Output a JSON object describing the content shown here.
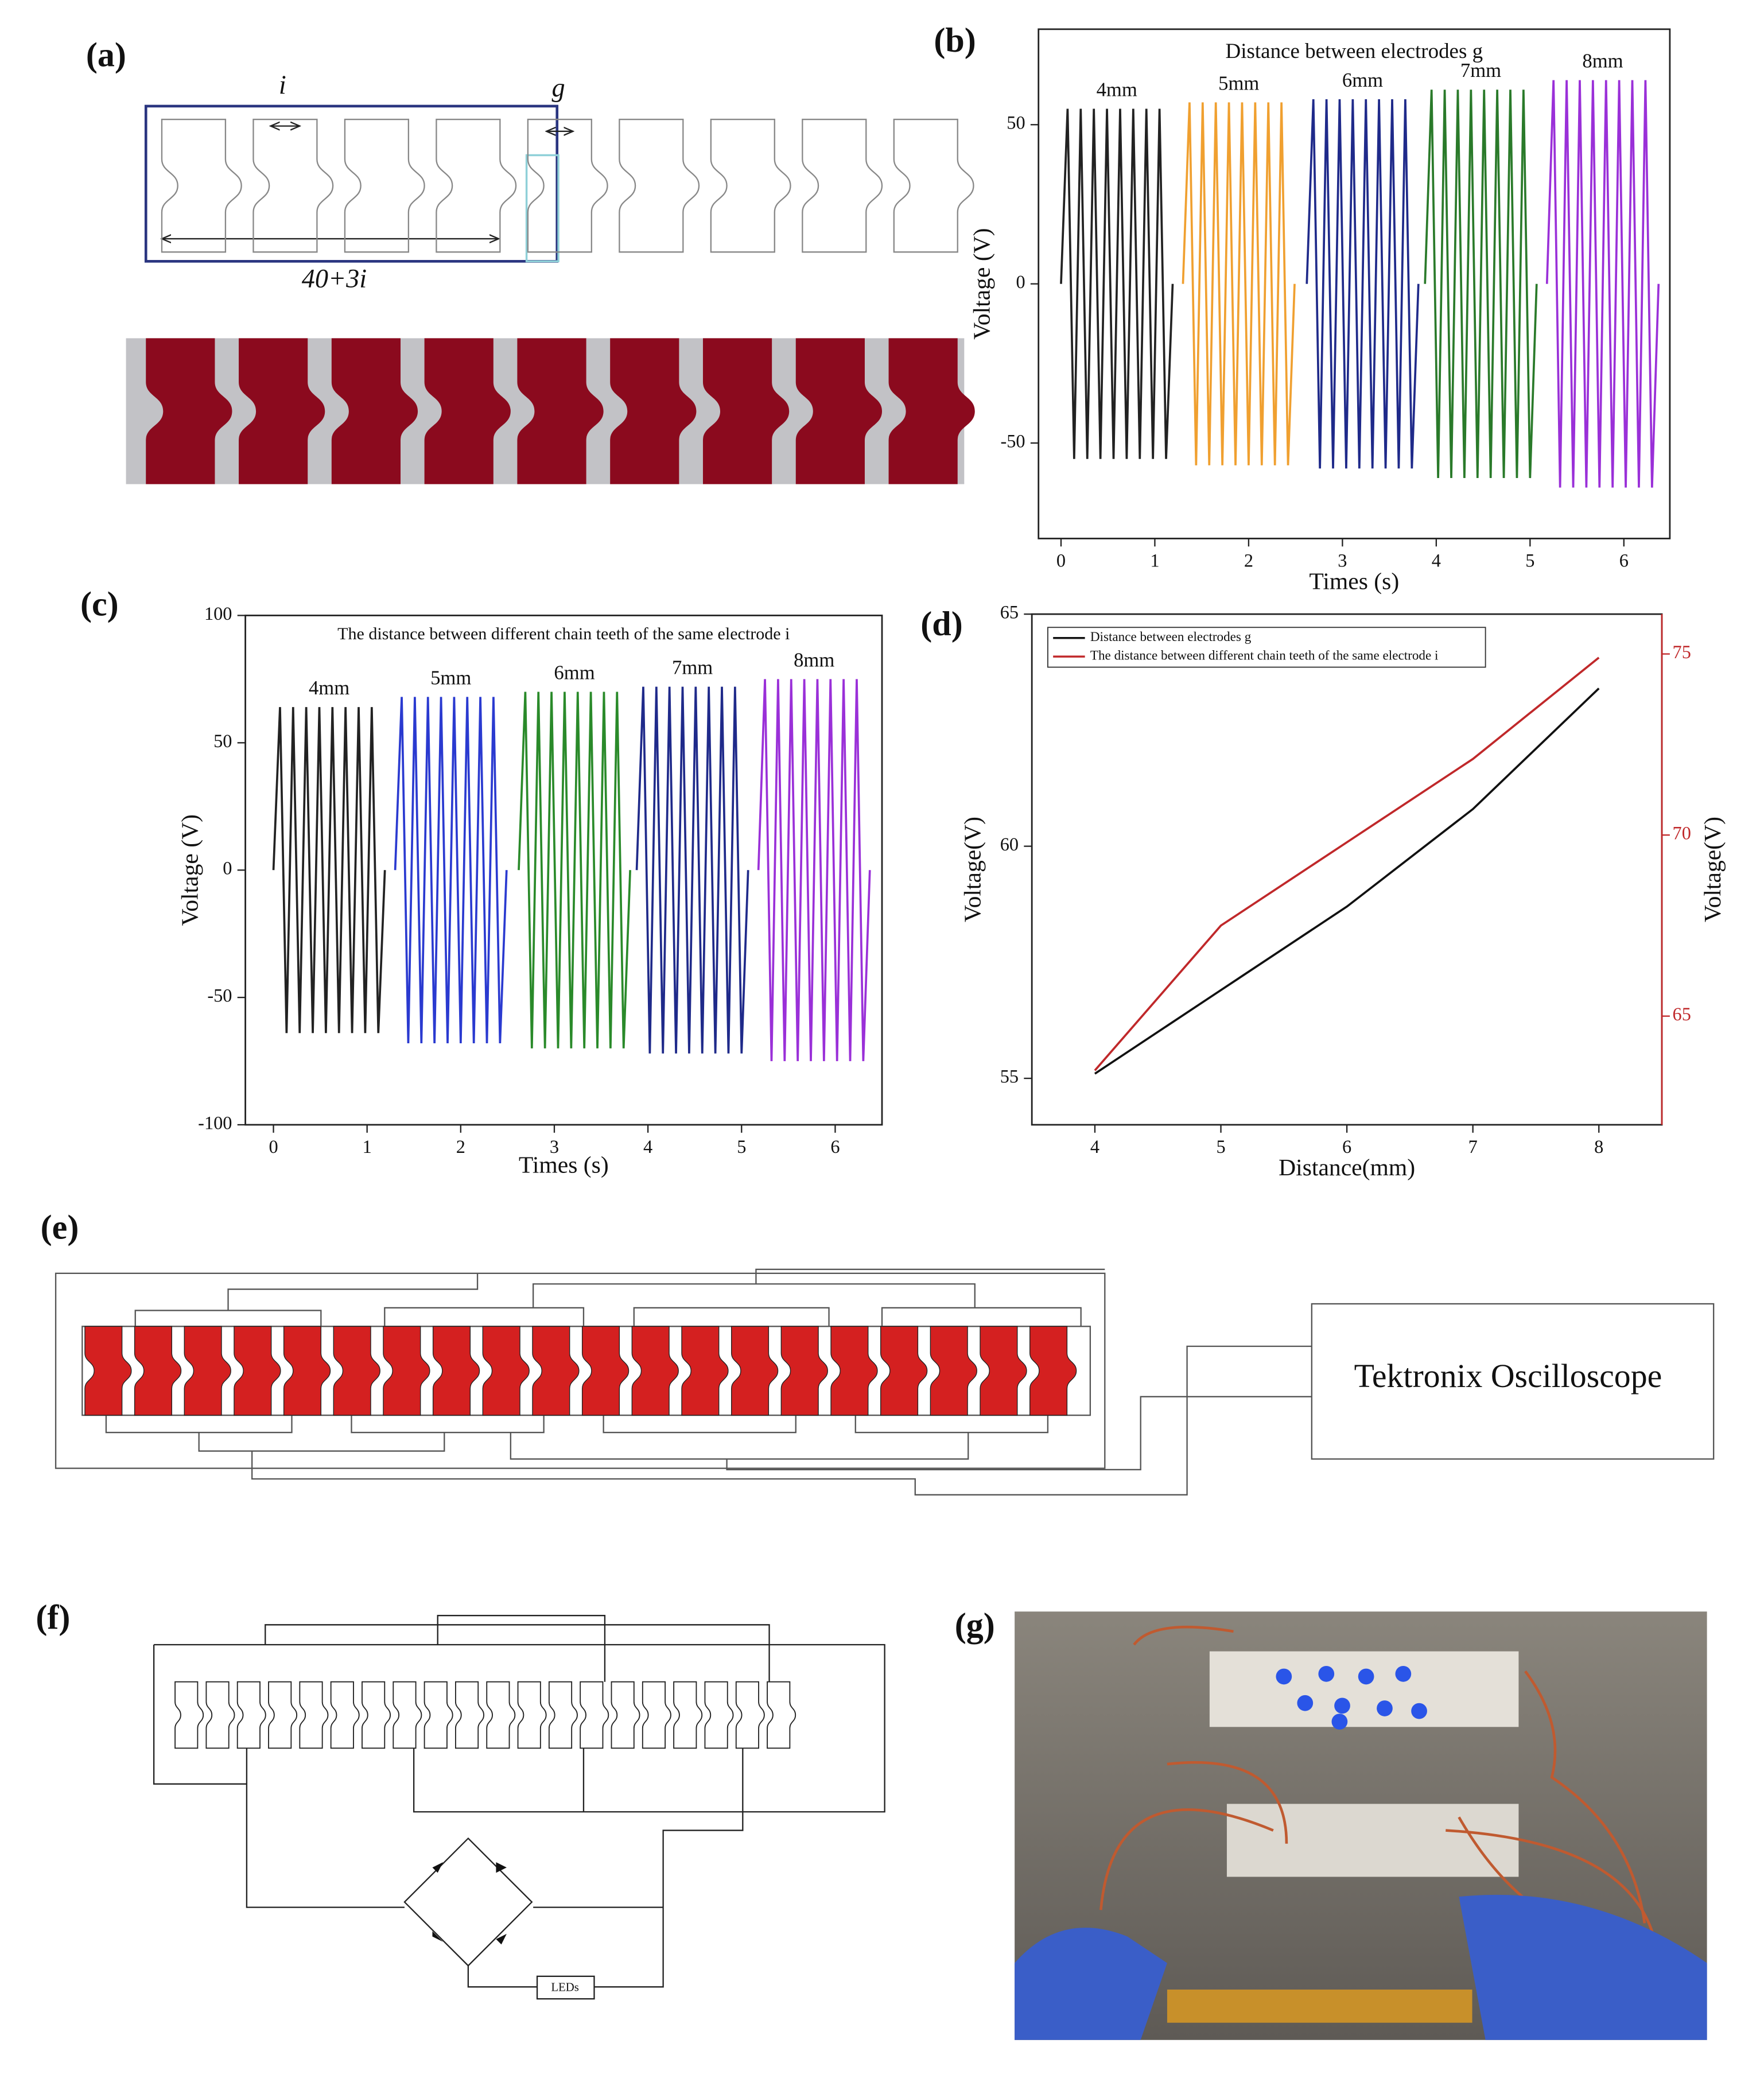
{
  "panel_labels": [
    "(a)",
    "(b)",
    "(c)",
    "(d)",
    "(e)",
    "(f)",
    "(g)"
  ],
  "panel_a": {
    "tooth_gap": "i",
    "electrode_gap": "g",
    "width": "40+3i"
  },
  "panel_e": {
    "instrument": "Tektronix Oscilloscope"
  },
  "panel_f": {
    "load": "LEDs"
  },
  "chart_data": [
    {
      "type": "line",
      "title": "Distance between electrodes g",
      "xlabel": "Times (s)",
      "ylabel": "Voltage (V)",
      "xlim": [
        -0.24,
        6.49
      ],
      "xticks": [
        0,
        1,
        2,
        3,
        4,
        5,
        6
      ],
      "ylim": [
        -80,
        80
      ],
      "yticks": [
        -50,
        0,
        50
      ],
      "legend": "inline",
      "series": [
        {
          "name": "4mm",
          "color": "#222222",
          "x": [
            0,
            0.07,
            0.14,
            0.21,
            0.28,
            0.35,
            0.42,
            0.49,
            0.56,
            0.63,
            0.7,
            0.77,
            0.84,
            0.91,
            0.98,
            1.05,
            1.12,
            1.19
          ],
          "values": [
            0,
            55,
            -55,
            55,
            -55,
            55,
            -55,
            55,
            -55,
            55,
            -55,
            55,
            -55,
            55,
            -55,
            55,
            -55,
            0
          ]
        },
        {
          "name": "5mm",
          "color": "#f0a030",
          "x": [
            1.3,
            1.37,
            1.44,
            1.51,
            1.58,
            1.65,
            1.72,
            1.79,
            1.86,
            1.93,
            2.0,
            2.07,
            2.14,
            2.21,
            2.28,
            2.35,
            2.42,
            2.49
          ],
          "values": [
            0,
            57,
            -57,
            57,
            -57,
            57,
            -57,
            57,
            -57,
            57,
            -57,
            57,
            -57,
            57,
            -57,
            57,
            -57,
            0
          ]
        },
        {
          "name": "6mm",
          "color": "#1f2a8a",
          "x": [
            2.62,
            2.69,
            2.76,
            2.83,
            2.9,
            2.97,
            3.04,
            3.11,
            3.18,
            3.25,
            3.32,
            3.39,
            3.46,
            3.53,
            3.6,
            3.67,
            3.74,
            3.81
          ],
          "values": [
            0,
            58,
            -58,
            58,
            -58,
            58,
            -58,
            58,
            -58,
            58,
            -58,
            58,
            -58,
            58,
            -58,
            58,
            -58,
            0
          ]
        },
        {
          "name": "7mm",
          "color": "#2a7a2a",
          "x": [
            3.88,
            3.95,
            4.02,
            4.09,
            4.16,
            4.23,
            4.3,
            4.37,
            4.44,
            4.51,
            4.58,
            4.65,
            4.72,
            4.79,
            4.86,
            4.93,
            5.0,
            5.07
          ],
          "values": [
            0,
            61,
            -61,
            61,
            -61,
            61,
            -61,
            61,
            -61,
            61,
            -61,
            61,
            -61,
            61,
            -61,
            61,
            -61,
            0
          ]
        },
        {
          "name": "8mm",
          "color": "#9a30d8",
          "x": [
            5.18,
            5.25,
            5.32,
            5.39,
            5.46,
            5.53,
            5.6,
            5.67,
            5.74,
            5.81,
            5.88,
            5.95,
            6.02,
            6.09,
            6.16,
            6.23,
            6.3,
            6.37
          ],
          "values": [
            0,
            64,
            -64,
            64,
            -64,
            64,
            -64,
            64,
            -64,
            64,
            -64,
            64,
            -64,
            64,
            -64,
            64,
            -64,
            0
          ]
        }
      ]
    },
    {
      "type": "line",
      "title": "The distance between different chain teeth of the same electrode i",
      "xlabel": "Times (s)",
      "ylabel": "Voltage (V)",
      "xlim": [
        -0.3,
        6.5
      ],
      "xticks": [
        0,
        1,
        2,
        3,
        4,
        5,
        6
      ],
      "ylim": [
        -100,
        100
      ],
      "yticks": [
        -100,
        -50,
        0,
        50,
        100
      ],
      "legend": "inline",
      "series": [
        {
          "name": "4mm",
          "color": "#222222",
          "x": [
            0,
            0.07,
            0.14,
            0.21,
            0.28,
            0.35,
            0.42,
            0.49,
            0.56,
            0.63,
            0.7,
            0.77,
            0.84,
            0.91,
            0.98,
            1.05,
            1.12,
            1.19
          ],
          "values": [
            0,
            64,
            -64,
            64,
            -64,
            64,
            -64,
            64,
            -64,
            64,
            -64,
            64,
            -64,
            64,
            -64,
            64,
            -64,
            0
          ]
        },
        {
          "name": "5mm",
          "color": "#2a3ad0",
          "x": [
            1.3,
            1.37,
            1.44,
            1.51,
            1.58,
            1.65,
            1.72,
            1.79,
            1.86,
            1.93,
            2.0,
            2.07,
            2.14,
            2.21,
            2.28,
            2.35,
            2.42,
            2.49
          ],
          "values": [
            0,
            68,
            -68,
            68,
            -68,
            68,
            -68,
            68,
            -68,
            68,
            -68,
            68,
            -68,
            68,
            -68,
            68,
            -68,
            0
          ]
        },
        {
          "name": "6mm",
          "color": "#2a8a2a",
          "x": [
            2.62,
            2.69,
            2.76,
            2.83,
            2.9,
            2.97,
            3.04,
            3.11,
            3.18,
            3.25,
            3.32,
            3.39,
            3.46,
            3.53,
            3.6,
            3.67,
            3.74,
            3.81
          ],
          "values": [
            0,
            70,
            -70,
            70,
            -70,
            70,
            -70,
            70,
            -70,
            70,
            -70,
            70,
            -70,
            70,
            -70,
            70,
            -70,
            0
          ]
        },
        {
          "name": "7mm",
          "color": "#1f2a8a",
          "x": [
            3.88,
            3.95,
            4.02,
            4.09,
            4.16,
            4.23,
            4.3,
            4.37,
            4.44,
            4.51,
            4.58,
            4.65,
            4.72,
            4.79,
            4.86,
            4.93,
            5.0,
            5.07
          ],
          "values": [
            0,
            72,
            -72,
            72,
            -72,
            72,
            -72,
            72,
            -72,
            72,
            -72,
            72,
            -72,
            72,
            -72,
            72,
            -72,
            0
          ]
        },
        {
          "name": "8mm",
          "color": "#9a30d8",
          "x": [
            5.18,
            5.25,
            5.32,
            5.39,
            5.46,
            5.53,
            5.6,
            5.67,
            5.74,
            5.81,
            5.88,
            5.95,
            6.02,
            6.09,
            6.16,
            6.23,
            6.3,
            6.37
          ],
          "values": [
            0,
            75,
            -75,
            75,
            -75,
            75,
            -75,
            75,
            -75,
            75,
            -75,
            75,
            -75,
            75,
            -75,
            75,
            -75,
            0
          ]
        }
      ]
    },
    {
      "type": "line",
      "xlabel": "Distance(mm)",
      "ylabel": "Voltage(V)",
      "y2label": "Voltage(V)",
      "x": [
        4,
        5,
        6,
        7,
        8
      ],
      "xlim": [
        3.5,
        8.5
      ],
      "xticks": [
        4,
        5,
        6,
        7,
        8
      ],
      "ylim": [
        54,
        65
      ],
      "yticks": [
        55,
        60,
        65
      ],
      "y2lim": [
        62,
        76.1
      ],
      "y2ticks": [
        65,
        70,
        75
      ],
      "legend": "upper left",
      "series": [
        {
          "name": "Distance between electrodes g",
          "color": "#111111",
          "values": [
            55.1,
            56.9,
            58.7,
            60.8,
            63.4
          ]
        },
        {
          "name": "The distance between different chain teeth of the same electrode i",
          "color": "#c0282a",
          "axis": "y2",
          "values": [
            63.5,
            67.5,
            69.8,
            72.1,
            74.9
          ]
        }
      ]
    }
  ]
}
